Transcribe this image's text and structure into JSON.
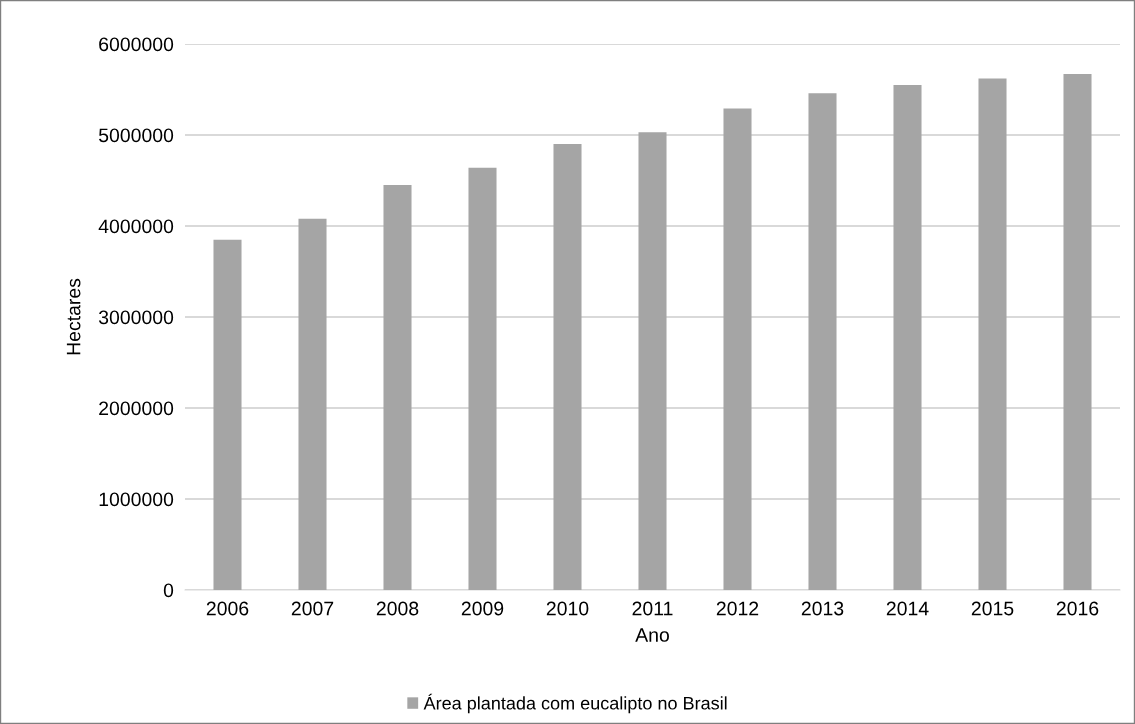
{
  "chart_data": {
    "type": "bar",
    "xlabel": "Ano",
    "ylabel": "Hectares",
    "categories": [
      "2006",
      "2007",
      "2008",
      "2009",
      "2010",
      "2011",
      "2012",
      "2013",
      "2014",
      "2015",
      "2016"
    ],
    "series": [
      {
        "name": "Área plantada com eucalipto no Brasil",
        "color": "#a5a5a5",
        "values": [
          3850000,
          4080000,
          4450000,
          4640000,
          4900000,
          5030000,
          5290000,
          5460000,
          5550000,
          5620000,
          5670000
        ]
      }
    ],
    "ylim": [
      0,
      6000000
    ],
    "yticks": [
      0,
      1000000,
      2000000,
      3000000,
      4000000,
      5000000,
      6000000
    ],
    "grid": "y",
    "legend": "bottom"
  }
}
